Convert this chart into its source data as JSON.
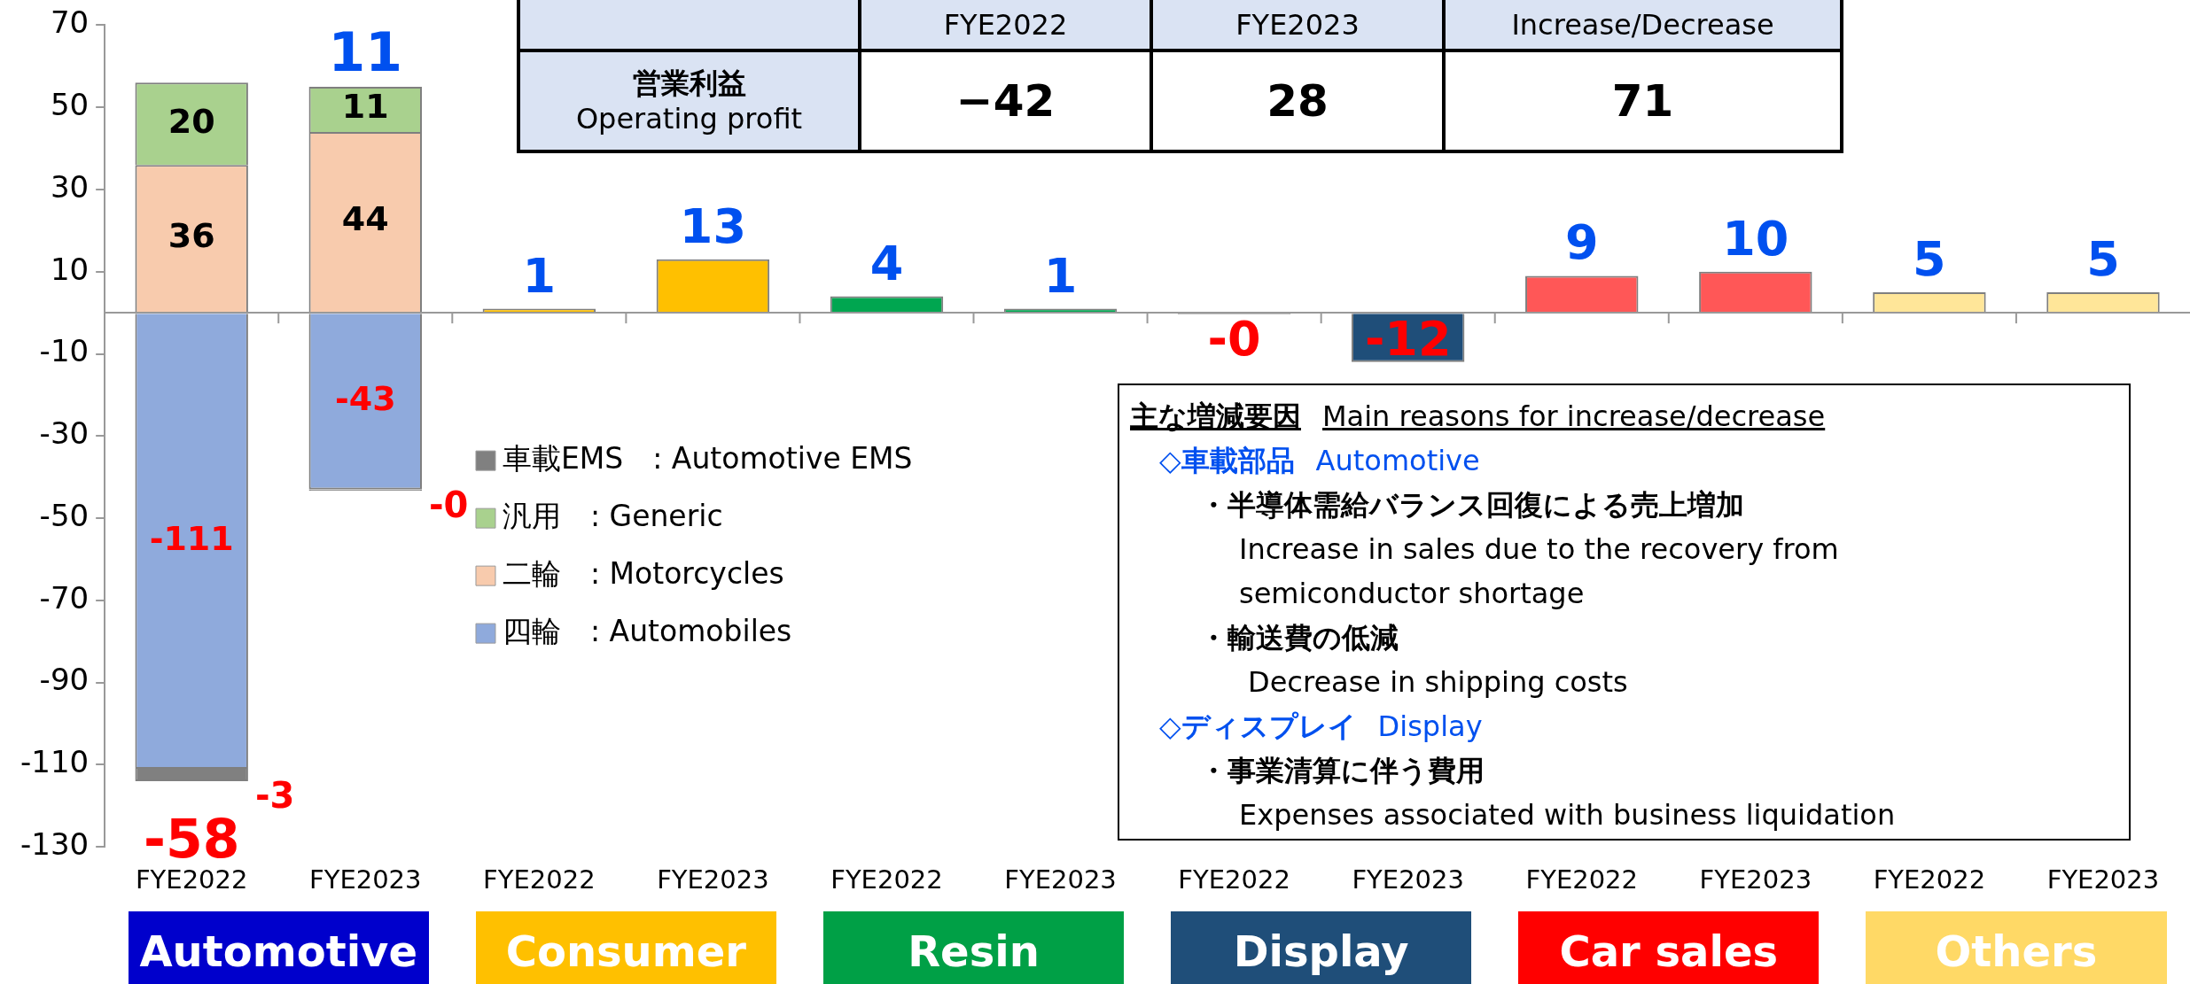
{
  "chart_data": {
    "type": "bar",
    "stacked": true,
    "categories": [
      "FYE2022",
      "FYE2023",
      "FYE2022",
      "FYE2023",
      "FYE2022",
      "FYE2023",
      "FYE2022",
      "FYE2023",
      "FYE2022",
      "FYE2023",
      "FYE2022",
      "FYE2023"
    ],
    "series": [
      {
        "name": "四輪　: Automobiles",
        "color": "#8faadc",
        "values": [
          -111,
          -43,
          null,
          null,
          null,
          null,
          null,
          null,
          null,
          null,
          null,
          null
        ],
        "value_labels": [
          "-111",
          "-43",
          null,
          null,
          null,
          null,
          null,
          null,
          null,
          null,
          null,
          null
        ]
      },
      {
        "name": "二輪　: Motorcycles",
        "color": "#f8cbad",
        "values": [
          36,
          44,
          null,
          null,
          null,
          null,
          null,
          null,
          null,
          null,
          null,
          null
        ],
        "value_labels": [
          "36",
          "44",
          null,
          null,
          null,
          null,
          null,
          null,
          null,
          null,
          null,
          null
        ]
      },
      {
        "name": "汎用　: Generic",
        "color": "#a9d18e",
        "values": [
          20,
          11,
          null,
          null,
          null,
          null,
          null,
          null,
          null,
          null,
          null,
          null
        ],
        "value_labels": [
          "20",
          "11",
          null,
          null,
          null,
          null,
          null,
          null,
          null,
          null,
          null,
          null
        ]
      },
      {
        "name": "車載EMS　: Automotive EMS",
        "color": "#808080",
        "values": [
          -3,
          -0.3,
          null,
          null,
          null,
          null,
          null,
          null,
          null,
          null,
          null,
          null
        ],
        "value_labels": [
          "-3",
          "-0",
          null,
          null,
          null,
          null,
          null,
          null,
          null,
          null,
          null,
          null
        ]
      },
      {
        "colors": [
          null,
          null,
          "#ffc000",
          "#ffc000",
          "#00a650",
          "#00a650",
          "#7f7f7f",
          "#1f4e79",
          "#ff5757",
          "#ff5757",
          "#ffe699",
          "#ffe699"
        ],
        "values": [
          null,
          null,
          1,
          13,
          4,
          1,
          -0.4,
          -12,
          9,
          10,
          5,
          5
        ],
        "value_labels": [
          null,
          null,
          "1",
          "13",
          "4",
          "1",
          "-0",
          "-12",
          "9",
          "10",
          "5",
          "5"
        ]
      }
    ],
    "totals": [
      "-58",
      "11",
      null,
      null,
      null,
      null,
      null,
      null,
      null,
      null,
      null,
      null
    ],
    "ylim": [
      -130,
      70
    ],
    "yticks": [
      -130,
      -110,
      -90,
      -70,
      -50,
      -30,
      -10,
      10,
      30,
      50,
      70
    ],
    "legend": "center",
    "annotations": [
      "FYE2022",
      "FYE2023",
      "Increase/Decrease",
      "営業利益",
      "Operating profit",
      "−42",
      "28",
      "71",
      "主な増減要因",
      "Main reasons for increase/decrease",
      "◇車載部品",
      "Automotive",
      "・半導体需給バランス回復による売上増加",
      "Increase in sales due to the recovery from semiconductor shortage",
      "・輸送費の低減",
      "Decrease in shipping costs",
      "◇ディスプレイ",
      "Display",
      "・事業清算に伴う費用",
      "Expenses associated with business liquidation",
      "Automotive",
      "Consumer",
      "Resin",
      "Display",
      "Car sales",
      "Others"
    ]
  }
}
